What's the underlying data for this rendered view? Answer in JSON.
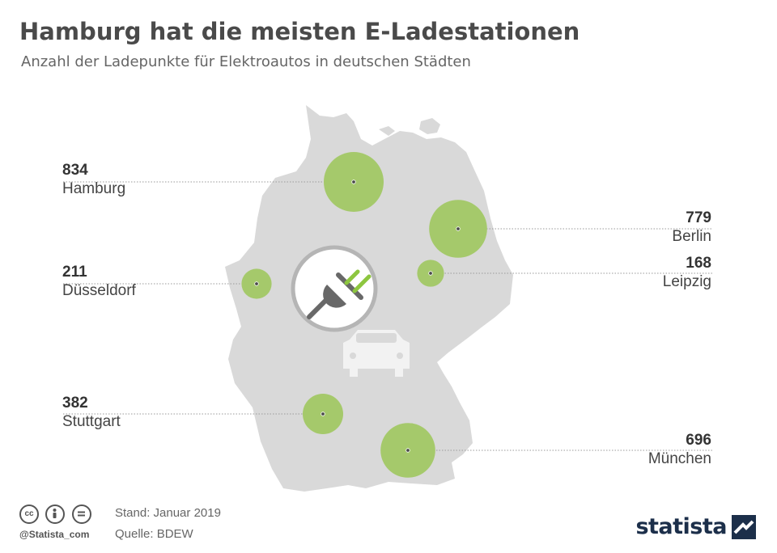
{
  "header": {
    "title": "Hamburg hat die meisten E-Ladestationen",
    "subtitle": "Anzahl der Ladepunkte für Elektroautos in deutschen Städten"
  },
  "colors": {
    "map_fill": "#d9d9d9",
    "bubble": "#a5c96b",
    "line": "#9a9a9a",
    "icon_circle_border": "#b5b5b5",
    "plug_body": "#686868",
    "plug_prongs": "#8dc63f",
    "brand": "#1c2f4a"
  },
  "cities": [
    {
      "name": "Hamburg",
      "value": "834",
      "count": 834
    },
    {
      "name": "Berlin",
      "value": "779",
      "count": 779
    },
    {
      "name": "Düsseldorf",
      "value": "211",
      "count": 211
    },
    {
      "name": "Leipzig",
      "value": "168",
      "count": 168
    },
    {
      "name": "Stuttgart",
      "value": "382",
      "count": 382
    },
    {
      "name": "München",
      "value": "696",
      "count": 696
    }
  ],
  "icons": {
    "center": "plug-icon",
    "car": "car-icon",
    "license": [
      "cc-icon",
      "by-icon",
      "nd-icon"
    ]
  },
  "footer": {
    "handle": "@Statista_com",
    "stand": "Stand: Januar 2019",
    "quelle": "Quelle: BDEW",
    "brand": "statista"
  }
}
